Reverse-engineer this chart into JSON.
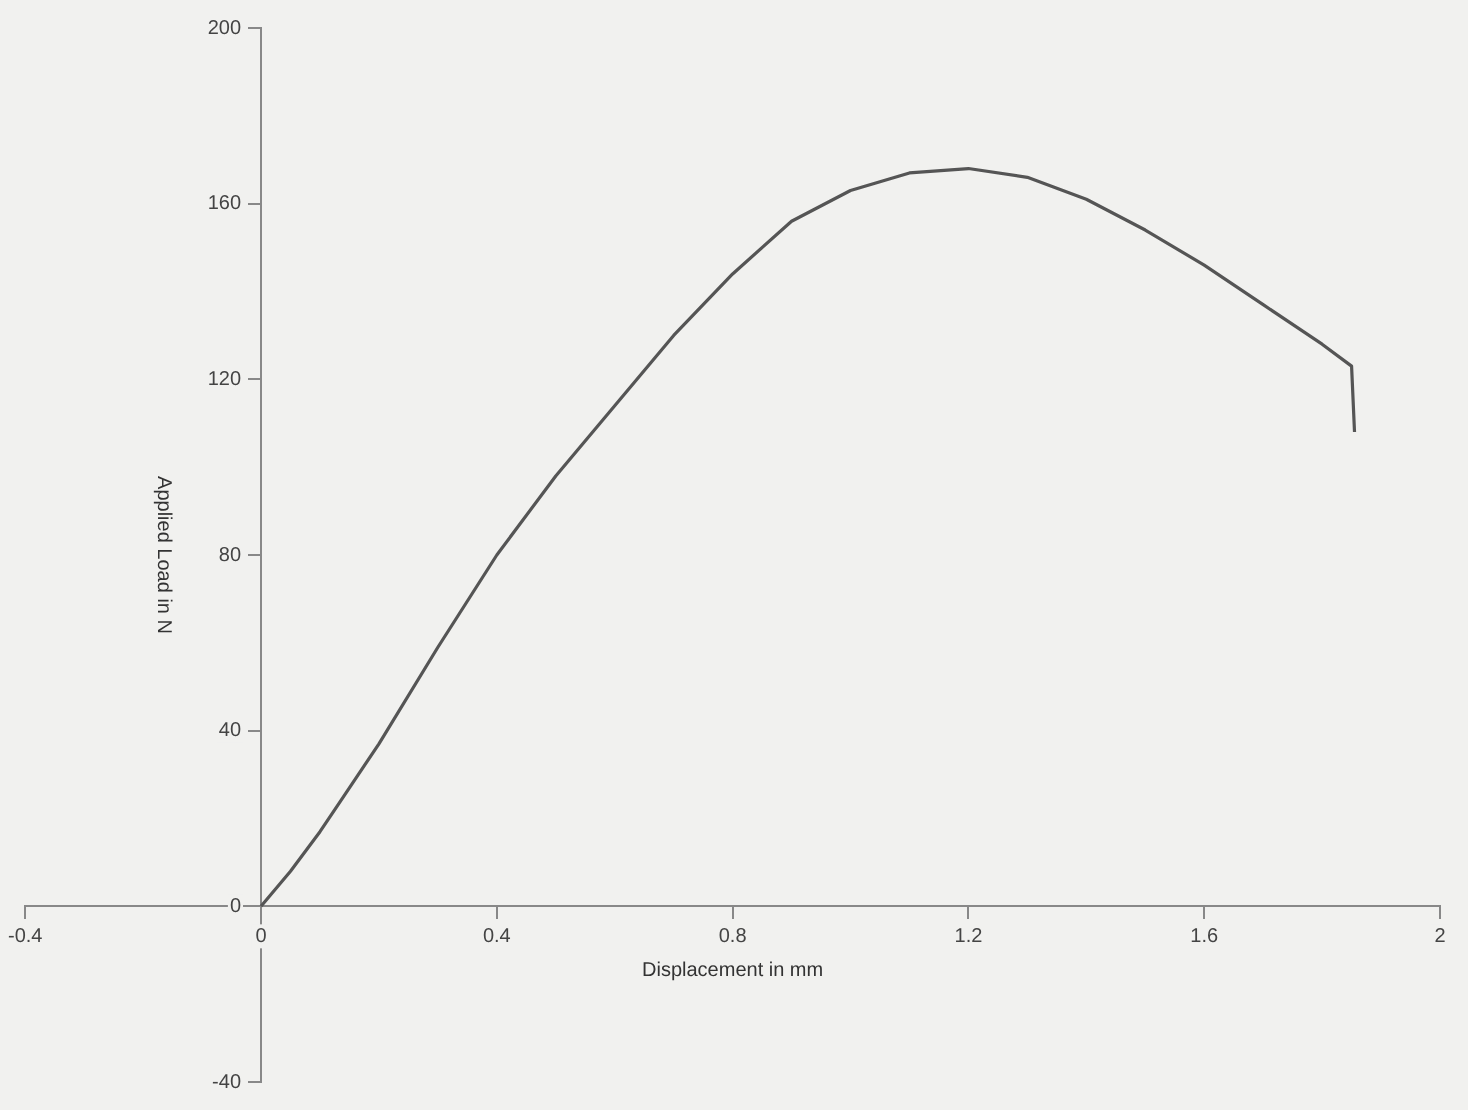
{
  "chart_data": {
    "type": "line",
    "xlabel": "Displacement in mm",
    "ylabel": "Applied Load in N",
    "xlim": [
      -0.4,
      2
    ],
    "xticks": [
      -0.4,
      0,
      0.4,
      0.8,
      1.2,
      1.6,
      2
    ],
    "ylim": [
      -40,
      200
    ],
    "yticks": [
      -40,
      0,
      40,
      80,
      120,
      160,
      200
    ],
    "grid": false,
    "legend": false,
    "marker": "none",
    "line_style": "solid",
    "series": [
      {
        "color": "#555555",
        "x": [
          0,
          0.05,
          0.1,
          0.13,
          0.2,
          0.3,
          0.4,
          0.5,
          0.6,
          0.7,
          0.8,
          0.9,
          1.0,
          1.1,
          1.2,
          1.3,
          1.4,
          1.5,
          1.6,
          1.7,
          1.8,
          1.85,
          1.855
        ],
        "values": [
          0,
          8,
          17,
          23,
          37,
          59,
          80,
          98,
          114,
          130,
          144,
          156,
          163,
          167,
          168,
          166,
          161,
          154,
          146,
          137,
          128,
          123,
          108
        ]
      }
    ]
  }
}
